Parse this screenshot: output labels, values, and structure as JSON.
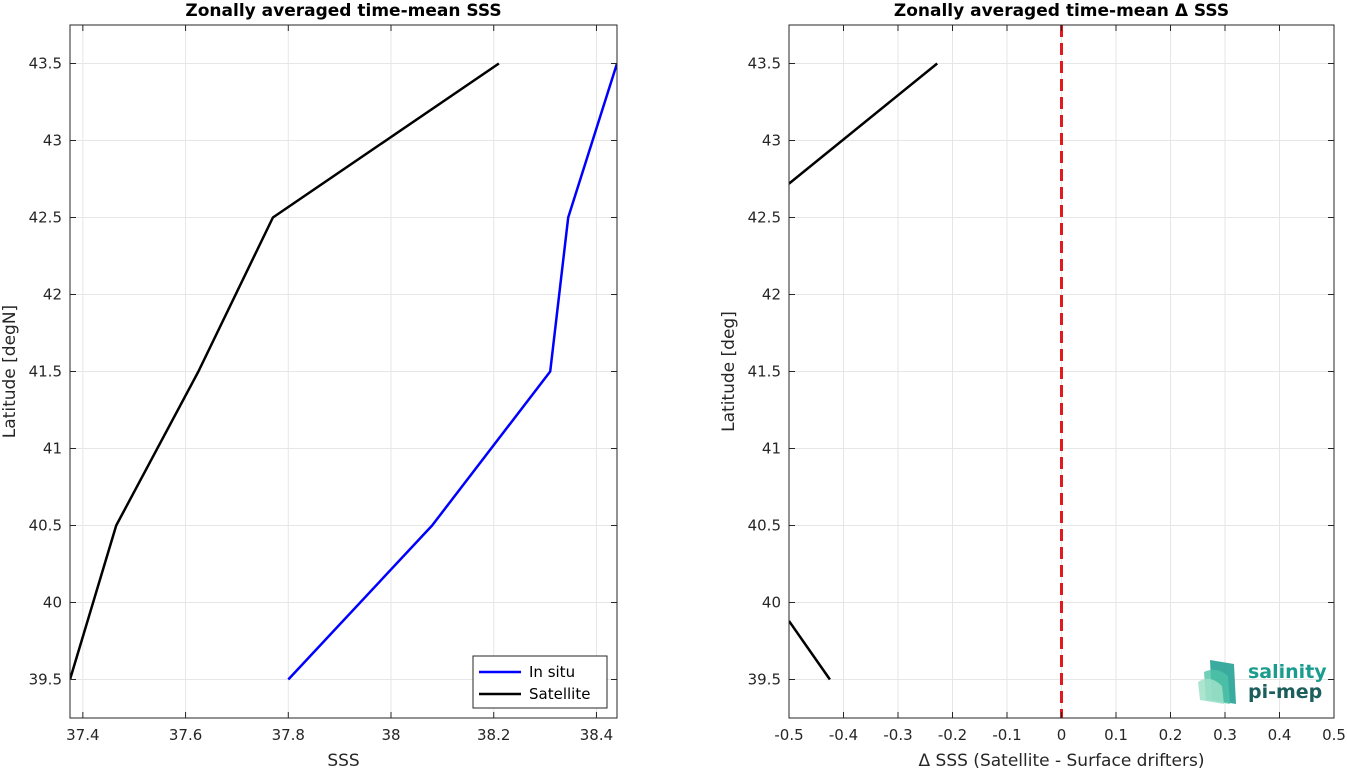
{
  "chart_data": [
    {
      "type": "line",
      "title": "Zonally averaged time-mean SSS",
      "xlabel": "SSS",
      "ylabel": "Latitude [degN]",
      "xlim": [
        37.375,
        38.44
      ],
      "ylim": [
        39.25,
        43.75
      ],
      "xticks": [
        37.4,
        37.6,
        37.8,
        38,
        38.2,
        38.4
      ],
      "xtick_labels": [
        "37.4",
        "37.6",
        "37.8",
        "38",
        "38.2",
        "38.4"
      ],
      "yticks": [
        39.5,
        40,
        40.5,
        41,
        41.5,
        42,
        42.5,
        43,
        43.5
      ],
      "ytick_labels": [
        "39.5",
        "40",
        "40.5",
        "41",
        "41.5",
        "42",
        "42.5",
        "43",
        "43.5"
      ],
      "grid": true,
      "legend": "bottom-right",
      "series": [
        {
          "name": "In situ",
          "color": "#0000ff",
          "x": [
            37.8,
            38.08,
            38.31,
            38.345,
            38.44
          ],
          "y": [
            39.5,
            40.5,
            41.5,
            42.5,
            43.5
          ]
        },
        {
          "name": "Satellite",
          "color": "#000000",
          "x": [
            37.375,
            37.465,
            37.625,
            37.77,
            38.21
          ],
          "y": [
            39.5,
            40.5,
            41.5,
            42.5,
            43.5
          ]
        }
      ]
    },
    {
      "type": "line",
      "title": "Zonally averaged time-mean Δ SSS",
      "xlabel": "Δ SSS (Satellite - Surface drifters)",
      "ylabel": "Latitude [deg]",
      "xlim": [
        -0.5,
        0.5
      ],
      "ylim": [
        39.25,
        43.75
      ],
      "xticks": [
        -0.5,
        -0.4,
        -0.3,
        -0.2,
        -0.1,
        0,
        0.1,
        0.2,
        0.3,
        0.4,
        0.5
      ],
      "xtick_labels": [
        "-0.5",
        "-0.4",
        "-0.3",
        "-0.2",
        "-0.1",
        "0",
        "0.1",
        "0.2",
        "0.3",
        "0.4",
        "0.5"
      ],
      "yticks": [
        39.5,
        40,
        40.5,
        41,
        41.5,
        42,
        42.5,
        43,
        43.5
      ],
      "ytick_labels": [
        "39.5",
        "40",
        "40.5",
        "41",
        "41.5",
        "42",
        "42.5",
        "43",
        "43.5"
      ],
      "grid": true,
      "reference_line": {
        "x": 0,
        "color": "#e31a1c",
        "style": "dashed"
      },
      "series": [
        {
          "color": "#000000",
          "segments": [
            {
              "x": [
                -0.5,
                -0.425
              ],
              "y": [
                39.88,
                39.5
              ]
            },
            {
              "x": [
                -0.5,
                -0.228
              ],
              "y": [
                42.72,
                43.5
              ]
            }
          ]
        }
      ]
    }
  ],
  "logo": {
    "line1": "salinity",
    "line2": "pi-mep",
    "color_primary": "#1a9c8e",
    "color_secondary": "#1b5e5c"
  }
}
